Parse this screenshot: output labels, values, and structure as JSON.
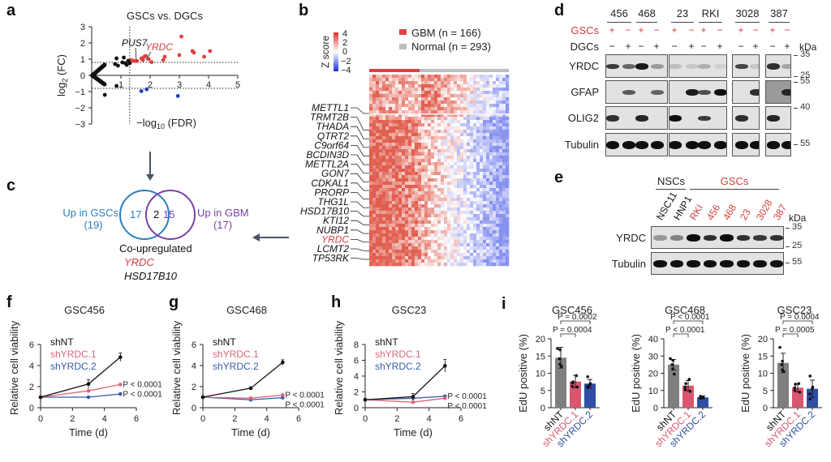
{
  "panels": {
    "a": {
      "label": "a",
      "chart_data": {
        "type": "scatter",
        "title": "GSCs vs. DGCs",
        "xlabel": "−log10 (FDR)",
        "ylabel": "log2 (FC)",
        "xlim": [
          0,
          5
        ],
        "ylim": [
          -3,
          3
        ],
        "xticks": [
          "1",
          "2",
          "3",
          "4",
          "5"
        ],
        "yticks": [
          "3",
          "2",
          "1",
          "0",
          "−1",
          "−2",
          "−3"
        ],
        "thresholds": {
          "x": 1.3,
          "y_up": 0.8,
          "y_down": -0.8
        },
        "annotations": [
          {
            "text": "PUS7",
            "color": "#111111",
            "x": 1.55,
            "y": 0.9
          },
          {
            "text": "YRDC",
            "color": "#d0403f",
            "x": 1.95,
            "y": 1.0
          }
        ],
        "series": [
          {
            "name": "up",
            "color": "#e0403f",
            "points": [
              [
                1.35,
                0.95
              ],
              [
                1.45,
                0.9
              ],
              [
                1.55,
                0.88
              ],
              [
                1.7,
                1.05
              ],
              [
                1.75,
                0.95
              ],
              [
                1.8,
                1.15
              ],
              [
                1.85,
                1.2
              ],
              [
                1.95,
                1.0
              ],
              [
                2.05,
                0.82
              ],
              [
                2.45,
                0.95
              ],
              [
                2.5,
                1.15
              ],
              [
                3.0,
                1.25
              ],
              [
                3.07,
                2.4
              ],
              [
                3.45,
                1.5
              ],
              [
                3.5,
                1.4
              ],
              [
                3.85,
                1.15
              ],
              [
                4.05,
                1.5
              ]
            ]
          },
          {
            "name": "down",
            "color": "#1f3fbf",
            "points": [
              [
                1.7,
                -0.97
              ],
              [
                1.88,
                -0.86
              ],
              [
                2.95,
                -1.27
              ]
            ]
          },
          {
            "name": "ns",
            "color": "#111111",
            "points": [
              [
                0.45,
                -1.2
              ],
              [
                0.85,
                -0.65
              ],
              [
                0.8,
                0.7
              ],
              [
                0.85,
                1.05
              ],
              [
                0.9,
                0.6
              ],
              [
                1.05,
                0.8
              ],
              [
                1.1,
                1.1
              ],
              [
                1.15,
                0.75
              ],
              [
                1.2,
                0.65
              ],
              [
                1.25,
                0.9
              ],
              [
                1.3,
                0.75
              ]
            ]
          }
        ]
      }
    },
    "b": {
      "label": "b",
      "colorbar": {
        "title": "Z score",
        "ticks": [
          "4",
          "2",
          "0",
          "−2",
          "−4"
        ]
      },
      "legend": [
        {
          "name": "GBM",
          "n": "(n = 166)",
          "color": "#e0403f"
        },
        {
          "name": "Normal",
          "n": "(n = 293)",
          "color": "#bdbdbd"
        }
      ],
      "chart_data": {
        "type": "heatmap",
        "groups": [
          {
            "name": "GBM",
            "n": 166
          },
          {
            "name": "Normal",
            "n": 293
          }
        ],
        "zlim": [
          -4,
          4
        ],
        "genes": [
          "METTL1",
          "TRMT2B",
          "THADA",
          "QTRT2",
          "C9orf64",
          "BCDIN3D",
          "METTL2A",
          "GON7",
          "CDKAL1",
          "PRORP",
          "THG1L",
          "HSD17B10",
          "KTI12",
          "NUBP1",
          "YRDC",
          "LCMT2",
          "TP53RK"
        ],
        "highlight_gene": "YRDC"
      }
    },
    "c": {
      "label": "c",
      "left_set": {
        "name": "Up in GSCs",
        "count": "(19)",
        "only": "17",
        "color": "#2a7fc0"
      },
      "right_set": {
        "name": "Up in GBM",
        "count": "(17)",
        "only": "15",
        "color": "#7d3fa8"
      },
      "overlap": "2",
      "title": "Co-upregulated",
      "genes": [
        {
          "name": "YRDC",
          "color": "#d0403f"
        },
        {
          "name": "HSD17B10",
          "color": "#111111"
        }
      ]
    },
    "d": {
      "label": "d",
      "groups": [
        "456",
        "468",
        "23",
        "RKI",
        "3028",
        "387"
      ],
      "row_gsc_label": "GSCs",
      "row_dgc_label": "DGCs",
      "gsc_signs": [
        "+",
        "−",
        "+",
        "−",
        "+",
        "−",
        "+",
        "−",
        "+",
        "−",
        "+",
        "−"
      ],
      "dgc_signs": [
        "−",
        "+",
        "−",
        "+",
        "−",
        "+",
        "−",
        "+",
        "−",
        "+",
        "−",
        "+"
      ],
      "kda_label": "kDa",
      "rows": [
        {
          "name": "YRDC",
          "markers": [
            "35",
            "25"
          ]
        },
        {
          "name": "GFAP",
          "markers": [
            "55"
          ]
        },
        {
          "name": "OLIG2",
          "markers": [
            "40"
          ]
        },
        {
          "name": "Tubulin",
          "markers": [
            "55"
          ]
        }
      ]
    },
    "e": {
      "label": "e",
      "nsc_label": "NSCs",
      "gsc_label": "GSCs",
      "lanes": [
        {
          "name": "NSC11",
          "color": "#111111"
        },
        {
          "name": "HNP1",
          "color": "#111111"
        },
        {
          "name": "RKI",
          "color": "#d0403f"
        },
        {
          "name": "456",
          "color": "#d0403f"
        },
        {
          "name": "468",
          "color": "#d0403f"
        },
        {
          "name": "23",
          "color": "#d0403f"
        },
        {
          "name": "3028",
          "color": "#d0403f"
        },
        {
          "name": "387",
          "color": "#d0403f"
        }
      ],
      "kda_label": "kDa",
      "rows": [
        {
          "name": "YRDC",
          "markers": [
            "35",
            "25"
          ]
        },
        {
          "name": "Tubulin",
          "markers": [
            "55"
          ]
        }
      ]
    }
  },
  "line_charts": [
    {
      "label": "f",
      "chart_data": {
        "type": "line",
        "title": "GSC456",
        "xlabel": "Time (d)",
        "ylabel": "Relative cell viability",
        "xlim": [
          0,
          6
        ],
        "ylim": [
          0,
          6
        ],
        "xticks": [
          "0",
          "2",
          "4",
          "6"
        ],
        "yticks": [
          "0",
          "2",
          "4",
          "6"
        ],
        "x": [
          0,
          3,
          5
        ],
        "series": [
          {
            "name": "shNT",
            "color": "#111111",
            "values": [
              1.0,
              2.25,
              4.8
            ],
            "err": [
              0,
              0.4,
              0.4
            ]
          },
          {
            "name": "shYRDC.1",
            "color": "#d9667a",
            "values": [
              1.0,
              1.6,
              2.2
            ],
            "err": [
              0,
              0.05,
              0.05
            ],
            "p": "P < 0.0001"
          },
          {
            "name": "shYRDC.2",
            "color": "#3b5aa8",
            "values": [
              1.0,
              1.0,
              1.3
            ],
            "err": [
              0,
              0.05,
              0.05
            ],
            "p": "P < 0.0001"
          }
        ]
      }
    },
    {
      "label": "g",
      "chart_data": {
        "type": "line",
        "title": "GSC468",
        "xlabel": "Time (d)",
        "ylabel": "Relative cell viability",
        "xlim": [
          0,
          6
        ],
        "ylim": [
          0,
          6
        ],
        "xticks": [
          "0",
          "2",
          "4",
          "6"
        ],
        "yticks": [
          "0",
          "2",
          "4",
          "6"
        ],
        "x": [
          0,
          3,
          5
        ],
        "series": [
          {
            "name": "shNT",
            "color": "#111111",
            "values": [
              1.0,
              1.85,
              4.3
            ],
            "err": [
              0,
              0.05,
              0.25
            ]
          },
          {
            "name": "shYRDC.1",
            "color": "#d9667a",
            "values": [
              1.0,
              0.9,
              1.2
            ],
            "err": [
              0,
              0.05,
              0.05
            ],
            "p": "P < 0.0001"
          },
          {
            "name": "shYRDC.2",
            "color": "#3b5aa8",
            "values": [
              1.0,
              0.75,
              0.95
            ],
            "err": [
              0,
              0.05,
              0.05
            ],
            "p": "P < 0.0001"
          }
        ]
      }
    },
    {
      "label": "h",
      "chart_data": {
        "type": "line",
        "title": "GSC23",
        "xlabel": "Time (d)",
        "ylabel": "Relative cell viability",
        "xlim": [
          0,
          6
        ],
        "ylim": [
          0,
          8
        ],
        "xticks": [
          "0",
          "2",
          "4",
          "6"
        ],
        "yticks": [
          "0",
          "2",
          "4",
          "6",
          "8"
        ],
        "x": [
          0,
          3,
          5
        ],
        "series": [
          {
            "name": "shNT",
            "color": "#111111",
            "values": [
              1.0,
              1.4,
              5.3
            ],
            "err": [
              0,
              0.4,
              0.8
            ]
          },
          {
            "name": "shYRDC.1",
            "color": "#d9667a",
            "values": [
              1.0,
              0.7,
              1.2
            ],
            "err": [
              0,
              0.1,
              0.1
            ],
            "p": "P < 0.0001"
          },
          {
            "name": "shYRDC.2",
            "color": "#3b5aa8",
            "values": [
              1.0,
              1.2,
              1.45
            ],
            "err": [
              0,
              0.1,
              0.1
            ],
            "p": "P < 0.0001"
          }
        ]
      }
    }
  ],
  "bar_charts_label": "i",
  "bar_charts": [
    {
      "chart_data": {
        "type": "bar",
        "title": "GSC456",
        "ylabel": "EdU positive (%)",
        "ylim": [
          0,
          20
        ],
        "yticks": [
          "0",
          "5",
          "10",
          "15",
          "20"
        ],
        "categories": [
          "shNT",
          "shYRDC.1",
          "shYRDC.2"
        ],
        "colors": [
          "#7f7f7f",
          "#d9566e",
          "#2e4fa3"
        ],
        "values": [
          14.5,
          7.6,
          7.0
        ],
        "err": [
          3.0,
          1.8,
          1.2
        ],
        "points": [
          [
            17.2,
            16.8,
            14.2,
            12.6,
            12.0
          ],
          [
            9.3,
            7.5,
            7.2,
            6.2,
            6.0
          ],
          [
            9.0,
            7.0,
            6.6,
            6.2,
            5.8
          ]
        ],
        "comparisons": [
          {
            "a": 0,
            "b": 1,
            "text": "P = 0.0004"
          },
          {
            "a": 0,
            "b": 2,
            "text": "P = 0.0002"
          }
        ]
      }
    },
    {
      "chart_data": {
        "type": "bar",
        "title": "GSC468",
        "ylabel": "EdU positive (%)",
        "ylim": [
          0,
          40
        ],
        "yticks": [
          "0",
          "10",
          "20",
          "30",
          "40"
        ],
        "categories": [
          "shNT",
          "shYRDC.1",
          "shYRDC.2"
        ],
        "colors": [
          "#7f7f7f",
          "#d9566e",
          "#2e4fa3"
        ],
        "values": [
          25.0,
          12.8,
          6.0
        ],
        "err": [
          3.0,
          3.0,
          0.8
        ],
        "points": [
          [
            28.5,
            27.5,
            25.0,
            22.5,
            19.5
          ],
          [
            16.5,
            14.0,
            12.0,
            10.5,
            9.5
          ],
          [
            6.6,
            6.2,
            6.0,
            5.8,
            5.5
          ]
        ],
        "comparisons": [
          {
            "a": 0,
            "b": 1,
            "text": "P < 0.0001"
          },
          {
            "a": 0,
            "b": 2,
            "text": "P < 0.0001"
          }
        ]
      }
    },
    {
      "chart_data": {
        "type": "bar",
        "title": "GSC23",
        "ylabel": "EdU positive (%)",
        "ylim": [
          0,
          20
        ],
        "yticks": [
          "0",
          "5",
          "10",
          "15",
          "20"
        ],
        "categories": [
          "shNT",
          "shYRDC.1",
          "shYRDC.2"
        ],
        "colors": [
          "#7f7f7f",
          "#d9566e",
          "#2e4fa3"
        ],
        "values": [
          13.0,
          5.8,
          5.5
        ],
        "err": [
          2.8,
          1.2,
          2.5
        ],
        "points": [
          [
            17.5,
            13.5,
            12.5,
            11.0,
            10.5
          ],
          [
            7.0,
            6.8,
            5.8,
            5.0,
            4.5
          ],
          [
            9.2,
            6.0,
            5.5,
            4.0,
            2.5
          ]
        ],
        "comparisons": [
          {
            "a": 0,
            "b": 1,
            "text": "P = 0.0005"
          },
          {
            "a": 0,
            "b": 2,
            "text": "P = 0.0004"
          }
        ]
      }
    }
  ]
}
